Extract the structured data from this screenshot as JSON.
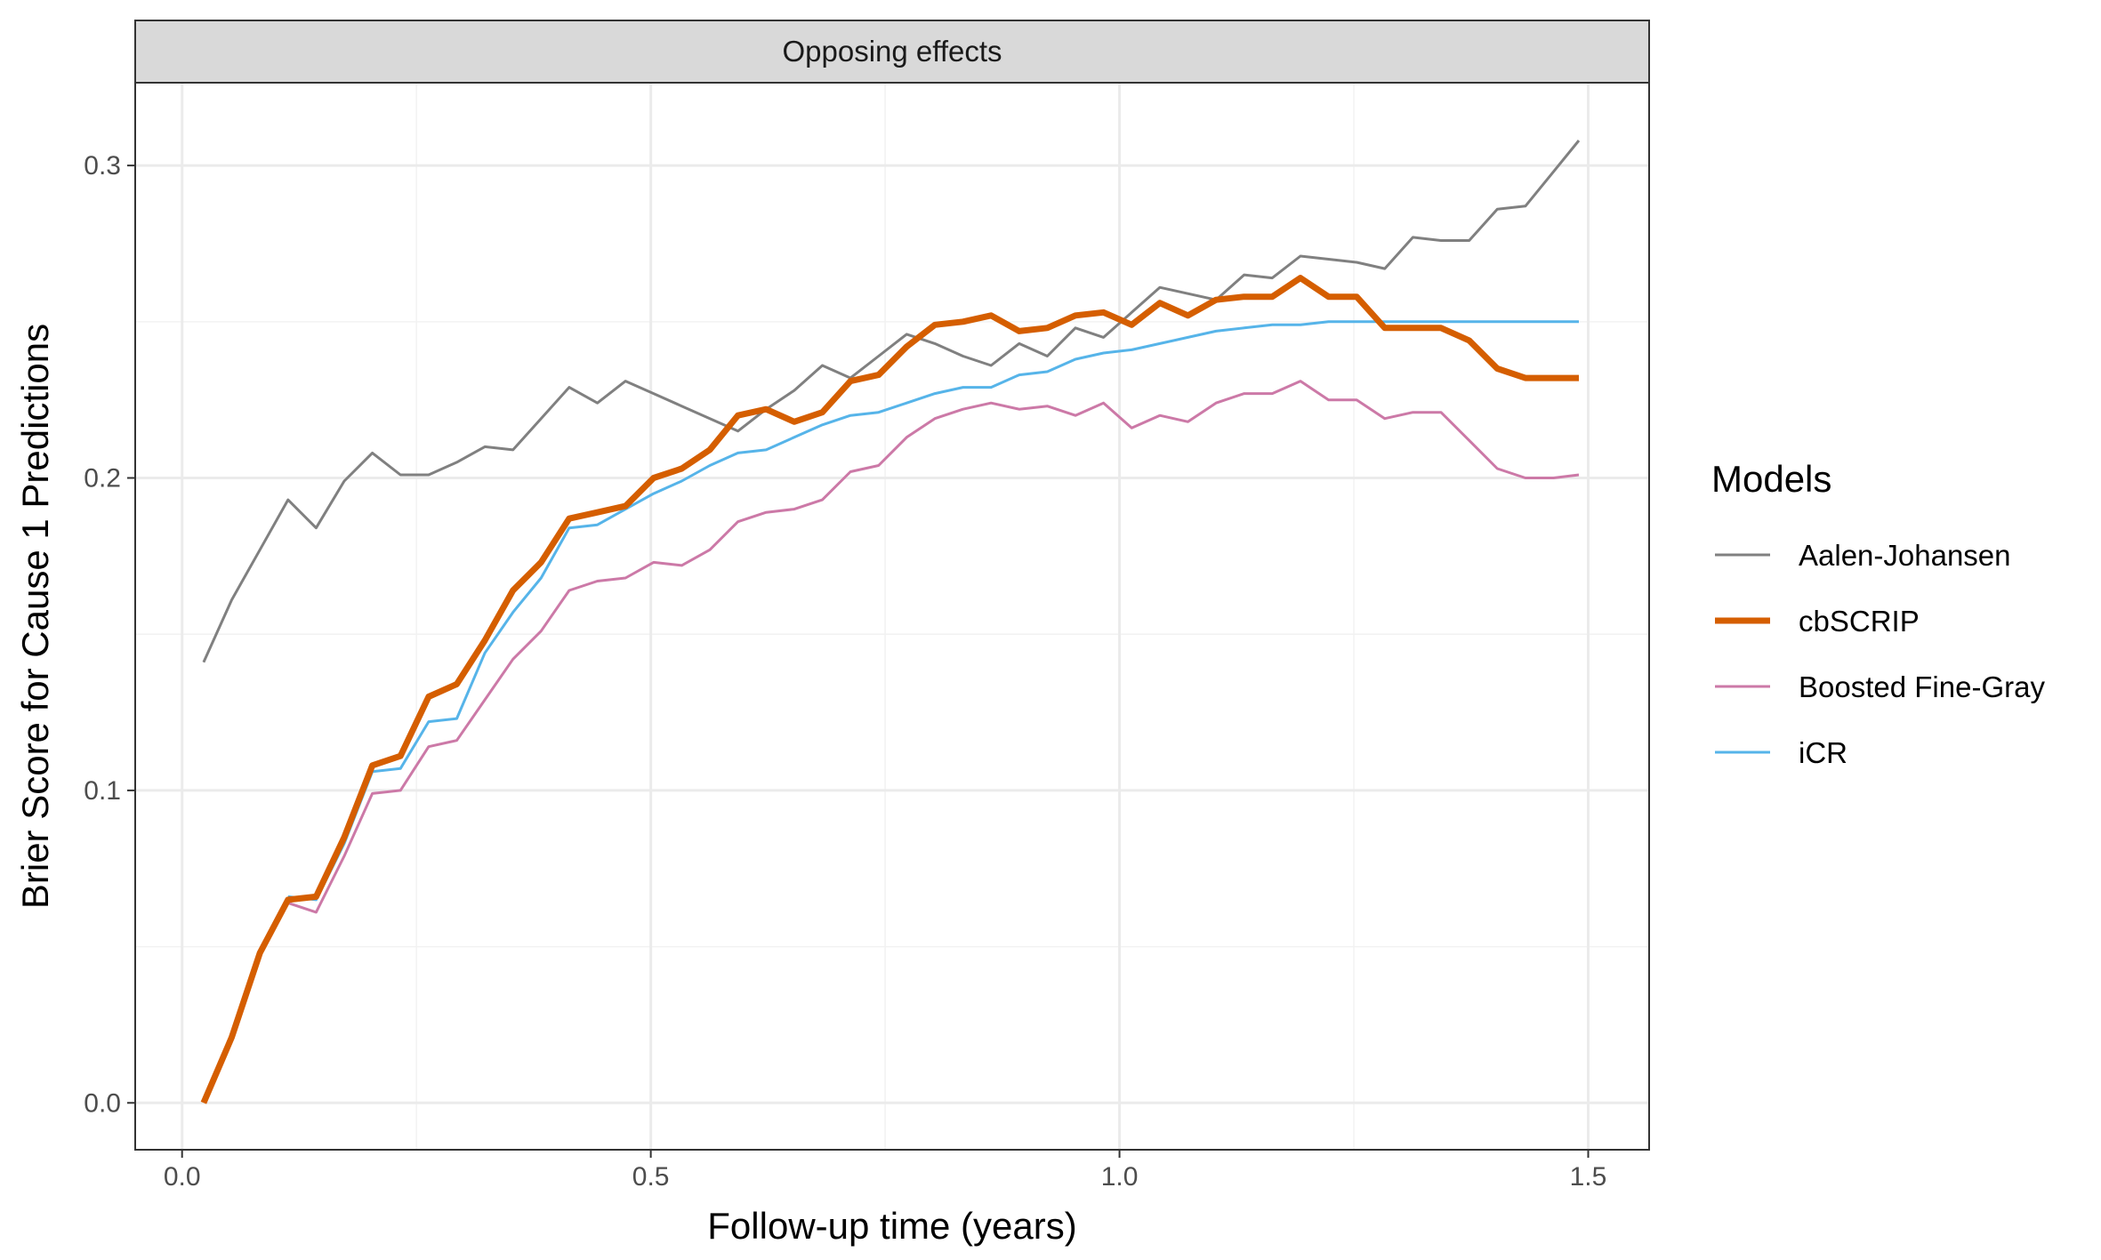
{
  "chart_data": {
    "type": "line",
    "panel_title": "Opposing effects",
    "xlabel": "Follow-up time (years)",
    "ylabel": "Brier Score for Cause 1 Predictions",
    "xlim": [
      -0.05,
      1.565
    ],
    "ylim": [
      -0.015,
      0.3265
    ],
    "x_ticks": [
      0.0,
      0.5,
      1.0,
      1.5
    ],
    "x_tick_labels": [
      "0.0",
      "0.5",
      "1.0",
      "1.5"
    ],
    "y_ticks": [
      0.0,
      0.1,
      0.2,
      0.3
    ],
    "y_tick_labels": [
      "0.0",
      "0.1",
      "0.2",
      "0.3"
    ],
    "grid": true,
    "legend_title": "Models",
    "legend_position": "right",
    "x": [
      0.023,
      0.053,
      0.083,
      0.113,
      0.143,
      0.173,
      0.203,
      0.233,
      0.263,
      0.293,
      0.323,
      0.353,
      0.383,
      0.413,
      0.443,
      0.473,
      0.503,
      0.533,
      0.563,
      0.593,
      0.623,
      0.653,
      0.683,
      0.713,
      0.743,
      0.773,
      0.803,
      0.833,
      0.863,
      0.893,
      0.923,
      0.953,
      0.983,
      1.013,
      1.043,
      1.073,
      1.103,
      1.133,
      1.163,
      1.193,
      1.223,
      1.253,
      1.283,
      1.313,
      1.343,
      1.373,
      1.403,
      1.433,
      1.463,
      1.49
    ],
    "series": [
      {
        "name": "Aalen-Johansen",
        "color": "#808080",
        "width": 3,
        "values": [
          0.141,
          0.161,
          0.177,
          0.193,
          0.184,
          0.199,
          0.208,
          0.201,
          0.201,
          0.205,
          0.21,
          0.209,
          0.219,
          0.229,
          0.224,
          0.231,
          0.227,
          0.223,
          0.219,
          0.215,
          0.222,
          0.228,
          0.236,
          0.232,
          0.239,
          0.246,
          0.243,
          0.239,
          0.236,
          0.243,
          0.239,
          0.248,
          0.245,
          0.253,
          0.261,
          0.259,
          0.257,
          0.265,
          0.264,
          0.271,
          0.27,
          0.269,
          0.267,
          0.277,
          0.276,
          0.276,
          0.286,
          0.287,
          0.298,
          0.308
        ]
      },
      {
        "name": "cbSCRIP",
        "color": "#D55E00",
        "width": 7,
        "values": [
          0.0,
          0.021,
          0.048,
          0.065,
          0.066,
          0.085,
          0.108,
          0.111,
          0.13,
          0.134,
          0.148,
          0.164,
          0.173,
          0.187,
          0.189,
          0.191,
          0.2,
          0.203,
          0.209,
          0.22,
          0.222,
          0.218,
          0.221,
          0.231,
          0.233,
          0.242,
          0.249,
          0.25,
          0.252,
          0.247,
          0.248,
          0.252,
          0.253,
          0.249,
          0.256,
          0.252,
          0.257,
          0.258,
          0.258,
          0.264,
          0.258,
          0.258,
          0.248,
          0.248,
          0.248,
          0.244,
          0.235,
          0.232,
          0.232,
          0.232
        ]
      },
      {
        "name": "Boosted Fine-Gray",
        "color": "#CC79A7",
        "width": 3,
        "values": [
          null,
          null,
          null,
          0.064,
          0.061,
          0.079,
          0.099,
          0.1,
          0.114,
          0.116,
          0.129,
          0.142,
          0.151,
          0.164,
          0.167,
          0.168,
          0.173,
          0.172,
          0.177,
          0.186,
          0.189,
          0.19,
          0.193,
          0.202,
          0.204,
          0.213,
          0.219,
          0.222,
          0.224,
          0.222,
          0.223,
          0.22,
          0.224,
          0.216,
          0.22,
          0.218,
          0.224,
          0.227,
          0.227,
          0.231,
          0.225,
          0.225,
          0.219,
          0.221,
          0.221,
          0.212,
          0.203,
          0.2,
          0.2,
          0.201
        ]
      },
      {
        "name": "iCR",
        "color": "#56B4E9",
        "width": 3,
        "values": [
          null,
          null,
          null,
          0.066,
          0.065,
          0.083,
          0.106,
          0.107,
          0.122,
          0.123,
          0.144,
          0.157,
          0.168,
          0.184,
          0.185,
          0.19,
          0.195,
          0.199,
          0.204,
          0.208,
          0.209,
          0.213,
          0.217,
          0.22,
          0.221,
          0.224,
          0.227,
          0.229,
          0.229,
          0.233,
          0.234,
          0.238,
          0.24,
          0.241,
          0.243,
          0.245,
          0.247,
          0.248,
          0.249,
          0.249,
          0.25,
          0.25,
          0.25,
          0.25,
          0.25,
          0.25,
          0.25,
          0.25,
          0.25,
          0.25
        ]
      }
    ]
  }
}
